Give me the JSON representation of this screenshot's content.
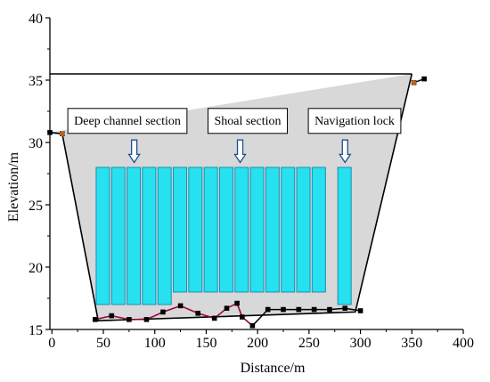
{
  "chart_data": {
    "type": "line",
    "title": "",
    "xlabel": "Distance/m",
    "ylabel": "Elevation/m",
    "xlim": [
      -2,
      400
    ],
    "ylim": [
      15,
      40
    ],
    "xticks": [
      0,
      50,
      100,
      150,
      200,
      250,
      300,
      350,
      400
    ],
    "yticks": [
      15,
      20,
      25,
      30,
      35,
      40
    ],
    "grid": false,
    "dam_outline": {
      "x": [
        -2,
        10,
        45,
        295,
        350,
        350
      ],
      "y": [
        30.8,
        30.7,
        15.7,
        16.4,
        35.5,
        35.5
      ],
      "crest": {
        "x": [
          -2,
          350
        ],
        "y": 35.5
      }
    },
    "riverbed_points": [
      {
        "x": 42,
        "y": 15.8
      },
      {
        "x": 58,
        "y": 16.1
      },
      {
        "x": 75,
        "y": 15.8
      },
      {
        "x": 92,
        "y": 15.8
      },
      {
        "x": 108,
        "y": 16.4
      },
      {
        "x": 125,
        "y": 16.9
      },
      {
        "x": 142,
        "y": 16.3
      },
      {
        "x": 158,
        "y": 15.9
      },
      {
        "x": 170,
        "y": 16.7
      },
      {
        "x": 180,
        "y": 17.1
      },
      {
        "x": 185,
        "y": 16.0
      },
      {
        "x": 195,
        "y": 15.3
      },
      {
        "x": 210,
        "y": 16.6
      },
      {
        "x": 225,
        "y": 16.6
      },
      {
        "x": 240,
        "y": 16.6
      },
      {
        "x": 255,
        "y": 16.6
      },
      {
        "x": 270,
        "y": 16.6
      },
      {
        "x": 285,
        "y": 16.7
      },
      {
        "x": 300,
        "y": 16.5
      }
    ],
    "bank_points": [
      {
        "x": -2,
        "y": 30.8
      },
      {
        "x": 10,
        "y": 30.7
      },
      {
        "x": 352,
        "y": 34.8
      },
      {
        "x": 362,
        "y": 35.1
      }
    ],
    "sections": [
      {
        "label": "Deep channel section",
        "arrow_x": 80
      },
      {
        "label": "Shoal section",
        "arrow_x": 183
      },
      {
        "label": "Navigation lock",
        "arrow_x": 285
      }
    ],
    "pillars": [
      {
        "x0": 43,
        "x1": 56,
        "y0": 17.0,
        "y1": 28.0
      },
      {
        "x0": 58,
        "x1": 71,
        "y0": 17.0,
        "y1": 28.0
      },
      {
        "x0": 73,
        "x1": 86,
        "y0": 17.0,
        "y1": 28.0
      },
      {
        "x0": 88,
        "x1": 101,
        "y0": 17.0,
        "y1": 28.0
      },
      {
        "x0": 103,
        "x1": 116,
        "y0": 17.0,
        "y1": 28.0
      },
      {
        "x0": 118,
        "x1": 131,
        "y0": 18.0,
        "y1": 28.0
      },
      {
        "x0": 133,
        "x1": 146,
        "y0": 18.0,
        "y1": 28.0
      },
      {
        "x0": 148,
        "x1": 161,
        "y0": 18.0,
        "y1": 28.0
      },
      {
        "x0": 163,
        "x1": 176,
        "y0": 18.0,
        "y1": 28.0
      },
      {
        "x0": 178,
        "x1": 191,
        "y0": 18.0,
        "y1": 28.0
      },
      {
        "x0": 193,
        "x1": 206,
        "y0": 18.0,
        "y1": 28.0
      },
      {
        "x0": 208,
        "x1": 221,
        "y0": 18.0,
        "y1": 28.0
      },
      {
        "x0": 223,
        "x1": 236,
        "y0": 18.0,
        "y1": 28.0
      },
      {
        "x0": 238,
        "x1": 251,
        "y0": 18.0,
        "y1": 28.0
      },
      {
        "x0": 253,
        "x1": 266,
        "y0": 18.0,
        "y1": 28.0
      },
      {
        "x0": 278,
        "x1": 291,
        "y0": 17.0,
        "y1": 28.0
      }
    ],
    "colors": {
      "dam_fill": "#d8d8d8",
      "pillar_fill": "#27e0f0",
      "pillar_stroke": "#1a8fb0",
      "line": "#000000",
      "bed_line": "#c0004a",
      "bank_marker": "#b8641e",
      "arrow_fill": "#ffffff",
      "arrow_stroke": "#1f4e96"
    }
  }
}
